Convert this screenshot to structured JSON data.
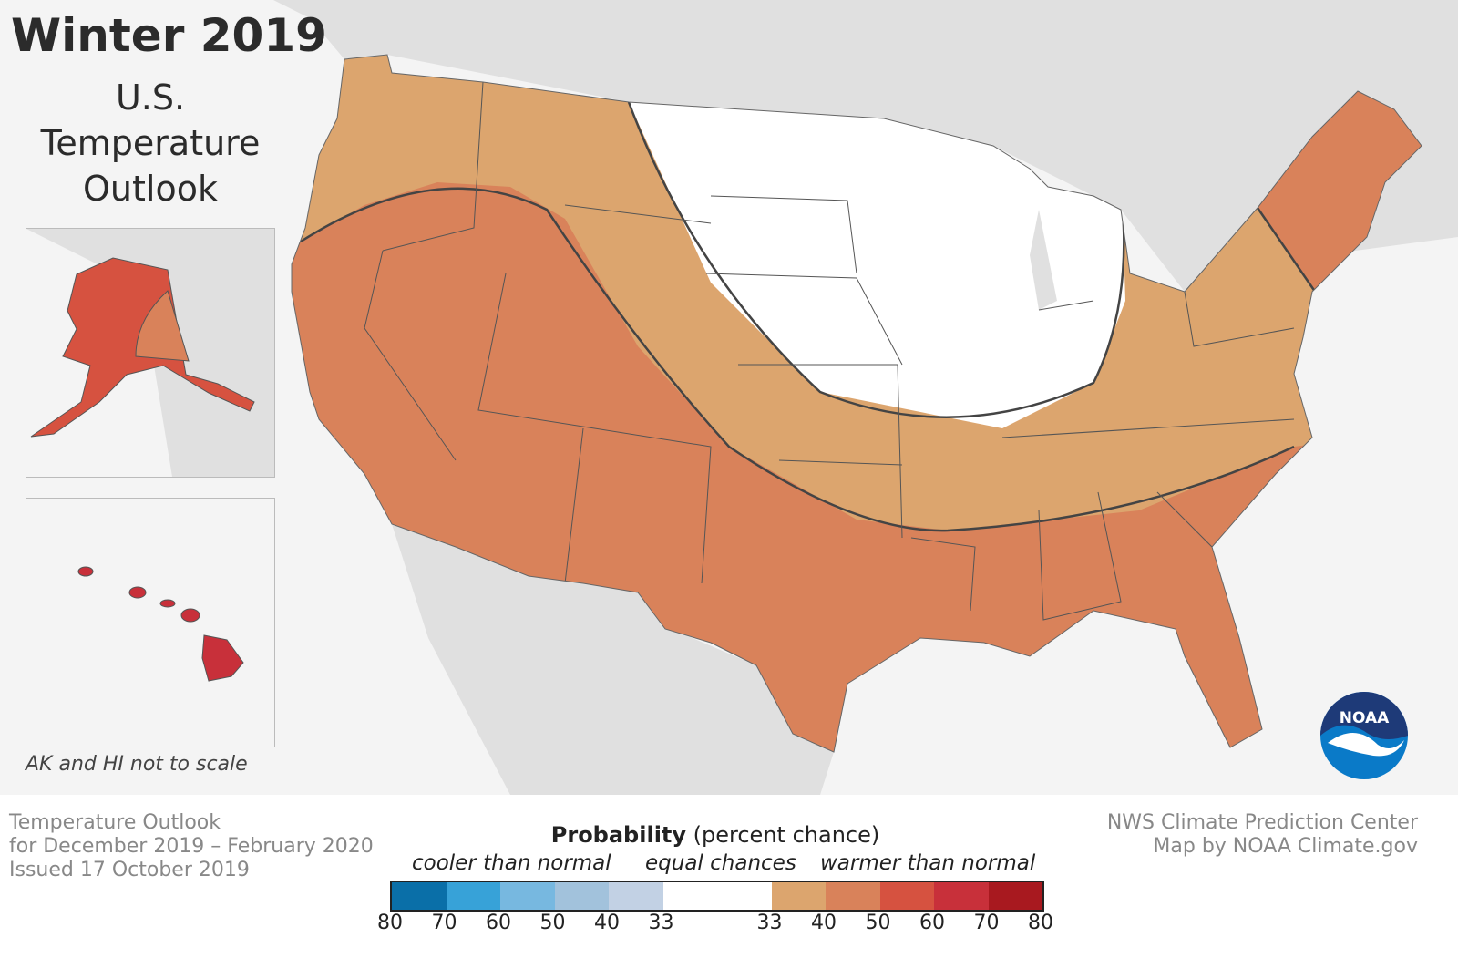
{
  "title": "Winter 2019",
  "subtitle": [
    "U.S.",
    "Temperature",
    "Outlook"
  ],
  "inset_note": "AK and HI not to scale",
  "footer_left": [
    "Temperature Outlook",
    "for December 2019 – February 2020",
    "Issued 17 October 2019"
  ],
  "footer_right": [
    "NWS Climate Prediction Center",
    "Map by NOAA Climate.gov"
  ],
  "logo_text": "NOAA",
  "legend": {
    "title_bold": "Probability",
    "title_rest": " (percent chance)",
    "categories": [
      "cooler than normal",
      "equal chances",
      "warmer than normal"
    ],
    "ticks": [
      "80",
      "70",
      "60",
      "50",
      "40",
      "33",
      "33",
      "40",
      "50",
      "60",
      "70",
      "80"
    ],
    "colors": [
      "#0a6fa8",
      "#37a2d8",
      "#77b8e0",
      "#a2c2dc",
      "#c2d1e4",
      "#ffffff",
      "#dca56e",
      "#d9825a",
      "#d65240",
      "#c8303a",
      "#a8191f"
    ]
  },
  "regions": {
    "equal_chances": "#ffffff",
    "warmer_33_40": "#dca56e",
    "warmer_40_50": "#d9825a",
    "alaska_50_60": "#d65240",
    "hawaii_60_70": "#c8303a"
  }
}
